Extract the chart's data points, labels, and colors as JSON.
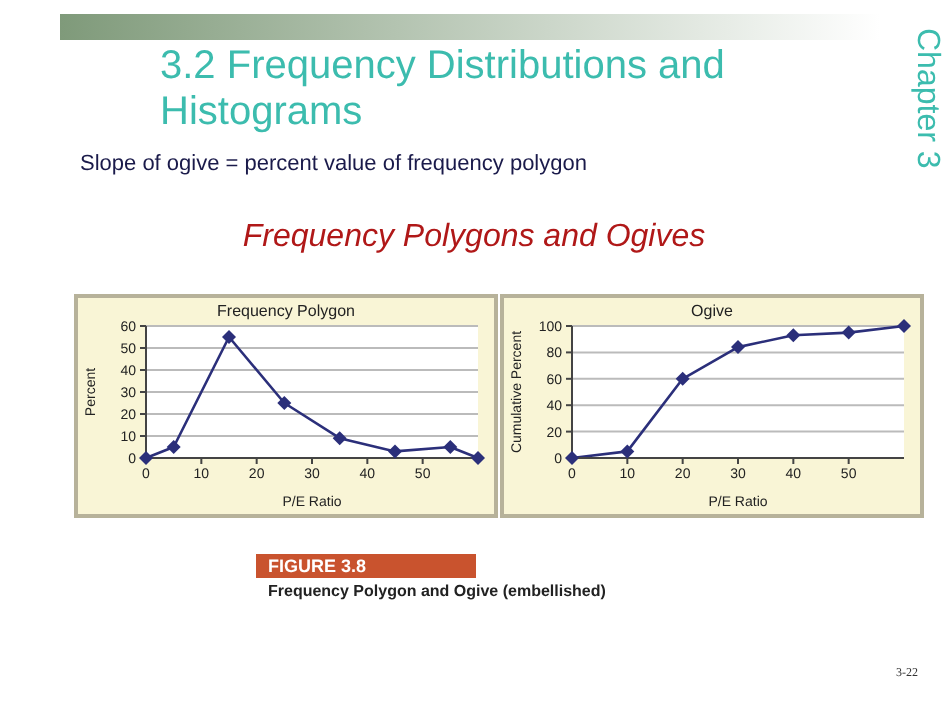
{
  "chart_data": [
    {
      "type": "line",
      "title": "Frequency Polygon",
      "xlabel": "P/E Ratio",
      "ylabel": "Percent",
      "x": [
        0,
        5,
        15,
        25,
        35,
        45,
        55,
        60
      ],
      "series": [
        {
          "color": "#2b2f7a",
          "values": [
            0,
            5,
            55,
            25,
            9,
            3,
            5,
            0
          ]
        }
      ],
      "xlim": [
        0,
        60
      ],
      "xticks": [
        0,
        10,
        20,
        30,
        40,
        50
      ],
      "ylim": [
        0,
        60
      ],
      "yticks": [
        0,
        10,
        20,
        30,
        40,
        50,
        60
      ],
      "grid": "y",
      "marker": "diamond",
      "line_style": "solid",
      "annotations": [
        "3.2  Frequency Distributions and Histograms",
        "Chapter 3",
        "Slope of ogive = percent value of frequency polygon",
        "Frequency Polygons and Ogives",
        "FIGURE 3.8",
        "Frequency Polygon and Ogive (embellished)",
        "3-22"
      ]
    },
    {
      "type": "line",
      "title": "Ogive",
      "xlabel": "P/E Ratio",
      "ylabel": "Cumulative Percent",
      "x": [
        0,
        10,
        20,
        30,
        40,
        50,
        60
      ],
      "series": [
        {
          "color": "#2b2f7a",
          "values": [
            0,
            5,
            60,
            84,
            93,
            95,
            100
          ]
        }
      ],
      "xlim": [
        0,
        60
      ],
      "xticks": [
        0,
        10,
        20,
        30,
        40,
        50
      ],
      "ylim": [
        0,
        100
      ],
      "yticks": [
        0,
        20,
        40,
        60,
        80,
        100
      ],
      "grid": "y",
      "marker": "diamond",
      "line_style": "solid"
    }
  ]
}
